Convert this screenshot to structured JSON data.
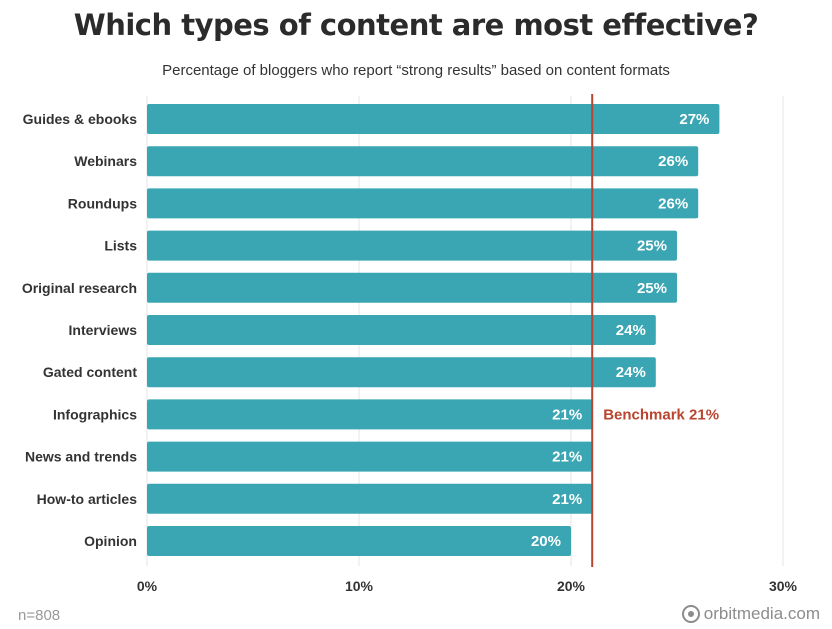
{
  "header": {
    "title": "Which types of content are most effective?",
    "subtitle": "Percentage of bloggers who report “strong results” based on content formats"
  },
  "footer": {
    "note": "n=808",
    "brand": "orbitmedia.com",
    "brand_icon": "orbit-logo-icon"
  },
  "colors": {
    "bar": "#3aa6b3",
    "benchmark": "#b8452f",
    "grid": "#e6e6e6",
    "value_text": "#ffffff"
  },
  "chart_data": {
    "type": "bar",
    "orientation": "horizontal",
    "title": "Which types of content are most effective?",
    "subtitle": "Percentage of bloggers who report “strong results” based on content formats",
    "categories": [
      "Guides & ebooks",
      "Webinars",
      "Roundups",
      "Lists",
      "Original research",
      "Interviews",
      "Gated content",
      "Infographics",
      "News and trends",
      "How-to articles",
      "Opinion"
    ],
    "values": [
      27,
      26,
      26,
      25,
      25,
      24,
      24,
      21,
      21,
      21,
      20
    ],
    "value_labels": [
      "27%",
      "26%",
      "26%",
      "25%",
      "25%",
      "24%",
      "24%",
      "21%",
      "21%",
      "21%",
      "20%"
    ],
    "xlim": [
      0,
      30
    ],
    "xticks": [
      0,
      10,
      20,
      30
    ],
    "xtick_labels": [
      "0%",
      "10%",
      "20%",
      "30%"
    ],
    "grid": true,
    "legend": "none",
    "benchmark": {
      "value": 21,
      "label": "Benchmark 21%"
    }
  }
}
